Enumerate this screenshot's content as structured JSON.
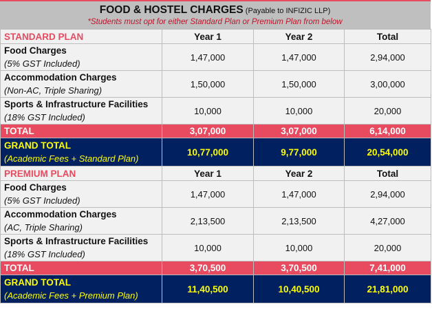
{
  "header": {
    "title": "FOOD & HOSTEL CHARGES",
    "title_suffix": " (Payable to INFIZIC LLP)",
    "note": "*Students must opt for either Standard Plan or Premium Plan from below"
  },
  "colors": {
    "accent_red": "#e84a5f",
    "grand_total_bg": "#002060",
    "grand_total_text": "#ffff00",
    "title_bg": "#bfbfbf",
    "note_text": "#c0142a"
  },
  "columns": [
    "Year 1",
    "Year 2",
    "Total"
  ],
  "standard": {
    "plan_label": "STANDARD PLAN",
    "col_year1": "Year 1",
    "col_year2": "Year 2",
    "col_total": "Total",
    "rows": [
      {
        "label": "Food Charges",
        "desc": "(5% GST Included)",
        "year1": "1,47,000",
        "year2": "1,47,000",
        "total": "2,94,000"
      },
      {
        "label": "Accommodation Charges",
        "desc": "(Non-AC, Triple Sharing)",
        "year1": "1,50,000",
        "year2": "1,50,000",
        "total": "3,00,000"
      },
      {
        "label": "Sports & Infrastructure Facilities",
        "desc": "(18% GST Included)",
        "year1": "10,000",
        "year2": "10,000",
        "total": "20,000"
      }
    ],
    "total": {
      "label": "TOTAL",
      "year1": "3,07,000",
      "year2": "3,07,000",
      "total": "6,14,000"
    },
    "grand_total": {
      "label": "GRAND TOTAL",
      "desc": "(Academic Fees + Standard Plan)",
      "year1": "10,77,000",
      "year2": "9,77,000",
      "total": "20,54,000"
    }
  },
  "premium": {
    "plan_label": "PREMIUM PLAN",
    "col_year1": "Year 1",
    "col_year2": "Year 2",
    "col_total": "Total",
    "rows": [
      {
        "label": "Food Charges",
        "desc": "(5% GST Included)",
        "year1": "1,47,000",
        "year2": "1,47,000",
        "total": "2,94,000"
      },
      {
        "label": "Accommodation Charges",
        "desc": "(AC, Triple Sharing)",
        "year1": "2,13,500",
        "year2": "2,13,500",
        "total": "4,27,000"
      },
      {
        "label": "Sports & Infrastructure Facilities",
        "desc": "(18% GST Included)",
        "year1": "10,000",
        "year2": "10,000",
        "total": "20,000"
      }
    ],
    "total": {
      "label": "TOTAL",
      "year1": "3,70,500",
      "year2": "3,70,500",
      "total": "7,41,000"
    },
    "grand_total": {
      "label": "GRAND TOTAL",
      "desc": "(Academic Fees + Premium Plan)",
      "year1": "11,40,500",
      "year2": "10,40,500",
      "total": "21,81,000"
    }
  }
}
